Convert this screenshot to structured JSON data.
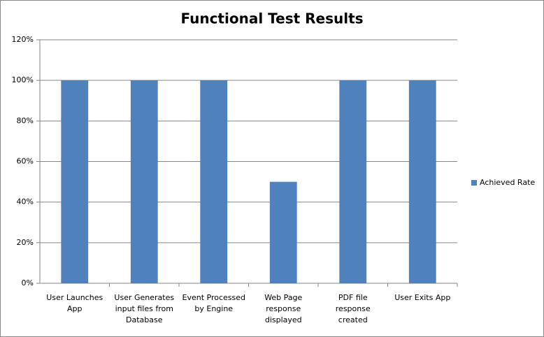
{
  "chart_data": {
    "type": "bar",
    "title": "Functional Test Results",
    "categories": [
      "User Launches App",
      "User Generates input files from Database",
      "Event Processed by Engine",
      "Web Page response displayed",
      "PDF file response created",
      "User Exits App"
    ],
    "series": [
      {
        "name": "Achieved Rate",
        "color": "#4f81bd",
        "values": [
          100,
          100,
          100,
          50,
          100,
          100
        ]
      }
    ],
    "ylim": [
      0,
      120
    ],
    "yticks": [
      {
        "value": 0,
        "label": "0%"
      },
      {
        "value": 20,
        "label": "20%"
      },
      {
        "value": 40,
        "label": "40%"
      },
      {
        "value": 60,
        "label": "60%"
      },
      {
        "value": 80,
        "label": "80%"
      },
      {
        "value": 100,
        "label": "100%"
      },
      {
        "value": 120,
        "label": "120%"
      }
    ],
    "grid": true,
    "legend": "right"
  }
}
